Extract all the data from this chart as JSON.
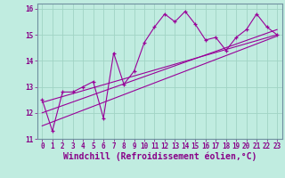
{
  "xlabel": "Windchill (Refroidissement éolien,°C)",
  "bg_color": "#c0ece0",
  "line_color": "#990099",
  "grid_color": "#a0d4c4",
  "spine_color": "#7090a0",
  "x_values": [
    0,
    1,
    2,
    3,
    4,
    5,
    6,
    7,
    8,
    9,
    10,
    11,
    12,
    13,
    14,
    15,
    16,
    17,
    18,
    19,
    20,
    21,
    22,
    23
  ],
  "y_values": [
    12.5,
    11.3,
    12.8,
    12.8,
    13.0,
    13.2,
    11.8,
    14.3,
    13.1,
    13.6,
    14.7,
    15.3,
    15.8,
    15.5,
    15.9,
    15.4,
    14.8,
    14.9,
    14.4,
    14.9,
    15.2,
    15.8,
    15.3,
    15.0
  ],
  "trend1_x": [
    0,
    23
  ],
  "trend1_y": [
    12.4,
    15.0
  ],
  "trend2_x": [
    0,
    23
  ],
  "trend2_y": [
    11.5,
    14.95
  ],
  "trend3_x": [
    0,
    23
  ],
  "trend3_y": [
    12.0,
    15.2
  ],
  "ylim": [
    11.0,
    16.2
  ],
  "xlim": [
    -0.5,
    23.5
  ],
  "yticks": [
    11,
    12,
    13,
    14,
    15,
    16
  ],
  "xticks": [
    0,
    1,
    2,
    3,
    4,
    5,
    6,
    7,
    8,
    9,
    10,
    11,
    12,
    13,
    14,
    15,
    16,
    17,
    18,
    19,
    20,
    21,
    22,
    23
  ],
  "tick_fontsize": 5.5,
  "xlabel_fontsize": 7.0,
  "label_color": "#880088"
}
